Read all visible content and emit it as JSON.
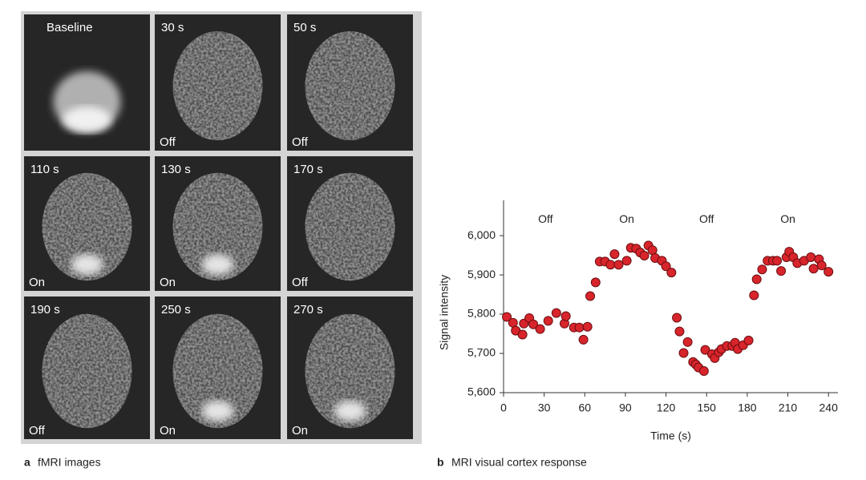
{
  "figure_a": {
    "label": "a",
    "caption": "fMRI images",
    "images": [
      {
        "time": "Baseline"
      },
      {
        "time": "30 s",
        "state": "Off"
      },
      {
        "time": "50 s",
        "state": "Off"
      },
      {
        "time": "110 s",
        "state": "On"
      },
      {
        "time": "130 s",
        "state": "On"
      },
      {
        "time": "170 s",
        "state": "Off"
      },
      {
        "time": "190 s",
        "state": "Off"
      },
      {
        "time": "250 s",
        "state": "On"
      },
      {
        "time": "270 s",
        "state": "On"
      }
    ]
  },
  "figure_b": {
    "label": "b",
    "caption": "MRI visual cortex response"
  },
  "chart_data": {
    "type": "scatter",
    "x_label": "Time (s)",
    "y_label": "Signal intensity",
    "color": "#d8242b",
    "xlim": [
      0,
      247
    ],
    "ylim": [
      5600,
      6090
    ],
    "xticks": [
      0,
      30,
      60,
      90,
      120,
      150,
      180,
      210,
      240
    ],
    "yticks": [
      {
        "value": 5600,
        "label": "5,600"
      },
      {
        "value": 5700,
        "label": "5,700"
      },
      {
        "value": 5800,
        "label": "5,800"
      },
      {
        "value": 5900,
        "label": "5,900"
      },
      {
        "value": 6000,
        "label": "6,000"
      }
    ],
    "annotations": [
      {
        "text": "Off",
        "x": 31,
        "y": 6040
      },
      {
        "text": "On",
        "x": 91,
        "y": 6040
      },
      {
        "text": "Off",
        "x": 150,
        "y": 6040
      },
      {
        "text": "On",
        "x": 210,
        "y": 6040
      }
    ],
    "x": [
      2.4,
      7,
      9,
      14,
      15,
      19,
      22,
      27,
      33,
      39,
      45,
      46,
      52,
      56,
      59,
      62,
      64,
      68,
      71,
      75,
      79,
      82,
      85,
      91,
      94,
      98,
      101,
      104,
      107,
      110,
      112,
      117,
      120,
      124,
      128,
      130,
      133,
      136,
      140,
      142,
      144,
      148,
      149,
      154,
      156,
      159,
      161,
      165,
      169,
      171,
      173,
      177,
      181,
      185,
      187,
      191,
      195,
      199,
      202,
      205,
      209,
      211,
      214,
      217,
      222,
      227,
      229,
      233,
      235,
      240
    ],
    "values": [
      5793,
      5778,
      5758,
      5748,
      5776,
      5790,
      5774,
      5762,
      5783,
      5803,
      5776,
      5795,
      5766,
      5766,
      5735,
      5768,
      5846,
      5881,
      5934,
      5934,
      5926,
      5953,
      5926,
      5936,
      5969,
      5967,
      5957,
      5949,
      5975,
      5963,
      5943,
      5936,
      5922,
      5906,
      5791,
      5756,
      5701,
      5729,
      5678,
      5672,
      5664,
      5655,
      5709,
      5698,
      5688,
      5703,
      5711,
      5719,
      5719,
      5727,
      5711,
      5721,
      5733,
      5848,
      5889,
      5914,
      5936,
      5936,
      5936,
      5910,
      5945,
      5959,
      5945,
      5930,
      5936,
      5945,
      5916,
      5940,
      5924,
      5908
    ]
  }
}
